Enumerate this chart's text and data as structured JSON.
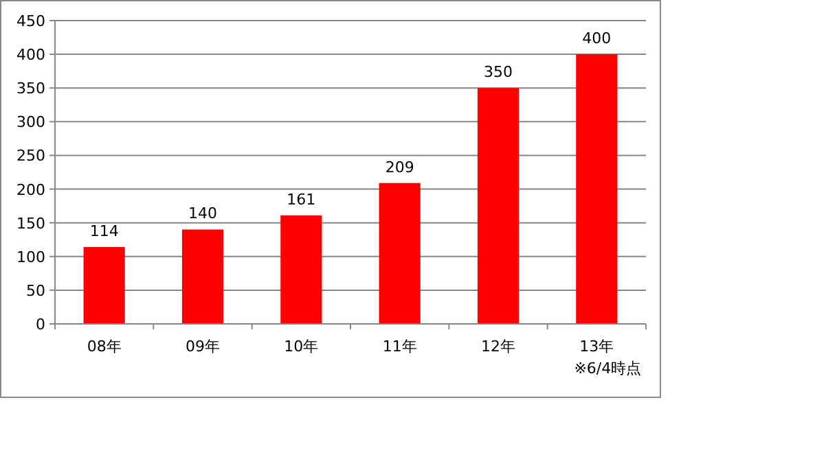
{
  "chart_data": {
    "type": "bar",
    "categories": [
      "08年",
      "09年",
      "10年",
      "11年",
      "12年",
      "13年"
    ],
    "values": [
      114,
      140,
      161,
      209,
      350,
      400
    ],
    "color": "#ff0000",
    "ylim": [
      0,
      450
    ],
    "yticks": [
      0,
      50,
      100,
      150,
      200,
      250,
      300,
      350,
      400,
      450
    ],
    "grid": "y",
    "data_labels": true,
    "annotations": [
      "※6/4時点"
    ]
  }
}
